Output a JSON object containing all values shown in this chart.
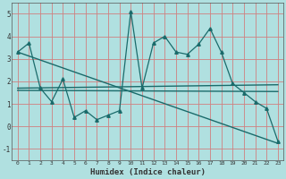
{
  "xlabel": "Humidex (Indice chaleur)",
  "background_color": "#b0e0e0",
  "grid_color": "#d08080",
  "line_color": "#1a6b6b",
  "xlim": [
    -0.5,
    23.5
  ],
  "ylim": [
    -1.5,
    5.5
  ],
  "xticks": [
    0,
    1,
    2,
    3,
    4,
    5,
    6,
    7,
    8,
    9,
    10,
    11,
    12,
    13,
    14,
    15,
    16,
    17,
    18,
    19,
    20,
    21,
    22,
    23
  ],
  "yticks": [
    -1,
    0,
    1,
    2,
    3,
    4,
    5
  ],
  "series1_x": [
    0,
    1,
    2,
    3,
    4,
    5,
    6,
    7,
    8,
    9,
    10,
    11,
    12,
    13,
    14,
    15,
    16,
    17,
    18,
    19,
    20,
    21,
    22,
    23
  ],
  "series1_y": [
    3.3,
    3.7,
    1.7,
    1.1,
    2.1,
    0.4,
    0.7,
    0.3,
    0.5,
    0.7,
    5.1,
    1.7,
    3.7,
    4.0,
    3.3,
    3.2,
    3.65,
    4.35,
    3.3,
    1.9,
    1.5,
    1.1,
    0.8,
    -0.65
  ],
  "trend1_x": [
    0,
    23
  ],
  "trend1_y": [
    3.3,
    -0.75
  ],
  "trend2_x": [
    0,
    23
  ],
  "trend2_y": [
    1.7,
    1.85
  ],
  "trend3_x": [
    0,
    23
  ],
  "trend3_y": [
    1.6,
    1.55
  ]
}
